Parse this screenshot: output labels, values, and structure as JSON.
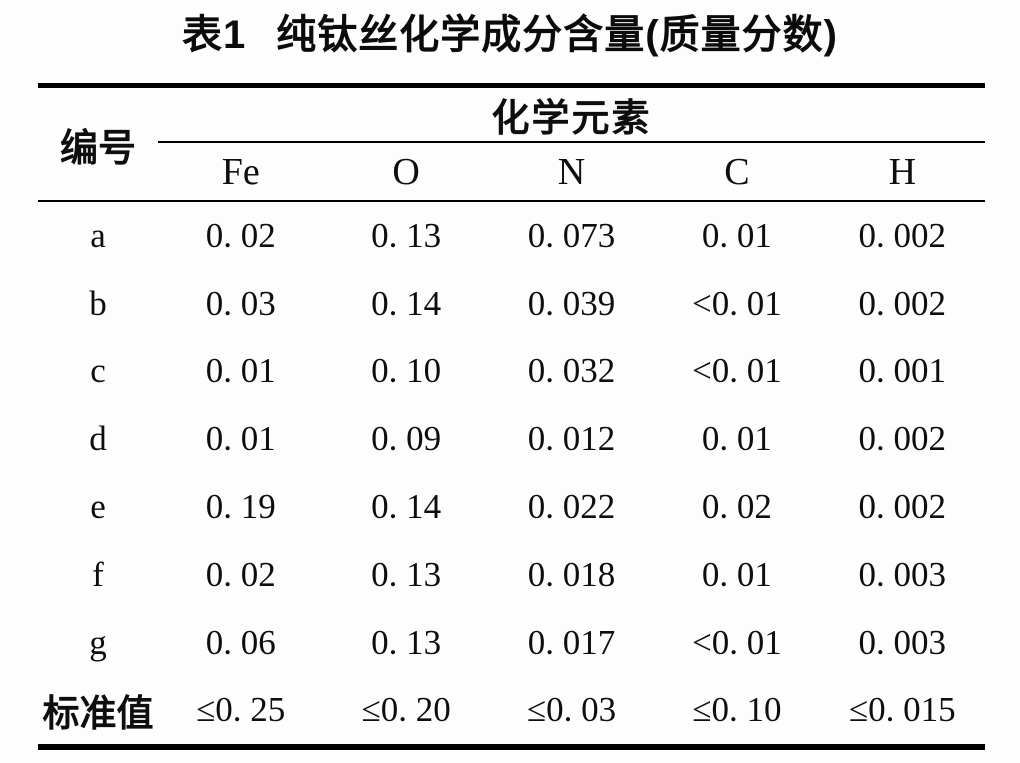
{
  "title": {
    "label": "表1",
    "text": "纯钛丝化学成分含量(质量分数)"
  },
  "table": {
    "corner_header": "编号",
    "group_header": "化学元素",
    "columns": [
      "Fe",
      "O",
      "N",
      "C",
      "H"
    ],
    "rows": [
      {
        "label": "a",
        "values": [
          "0. 02",
          "0. 13",
          "0. 073",
          "0. 01",
          "0. 002"
        ]
      },
      {
        "label": "b",
        "values": [
          "0. 03",
          "0. 14",
          "0. 039",
          "<0. 01",
          "0. 002"
        ]
      },
      {
        "label": "c",
        "values": [
          "0. 01",
          "0. 10",
          "0. 032",
          "<0. 01",
          "0. 001"
        ]
      },
      {
        "label": "d",
        "values": [
          "0. 01",
          "0. 09",
          "0. 012",
          "0. 01",
          "0. 002"
        ]
      },
      {
        "label": "e",
        "values": [
          "0. 19",
          "0. 14",
          "0. 022",
          "0. 02",
          "0. 002"
        ]
      },
      {
        "label": "f",
        "values": [
          "0. 02",
          "0. 13",
          "0. 018",
          "0. 01",
          "0. 003"
        ]
      },
      {
        "label": "g",
        "values": [
          "0. 06",
          "0. 13",
          "0. 017",
          "<0. 01",
          "0. 003"
        ]
      },
      {
        "label": "标准值",
        "values": [
          "≤0. 25",
          "≤0. 20",
          "≤0. 03",
          "≤0. 10",
          "≤0. 015"
        ]
      }
    ],
    "colors": {
      "text": "#0e0e0e",
      "rule": "#000000",
      "page_background": "#fdfdfd"
    }
  }
}
